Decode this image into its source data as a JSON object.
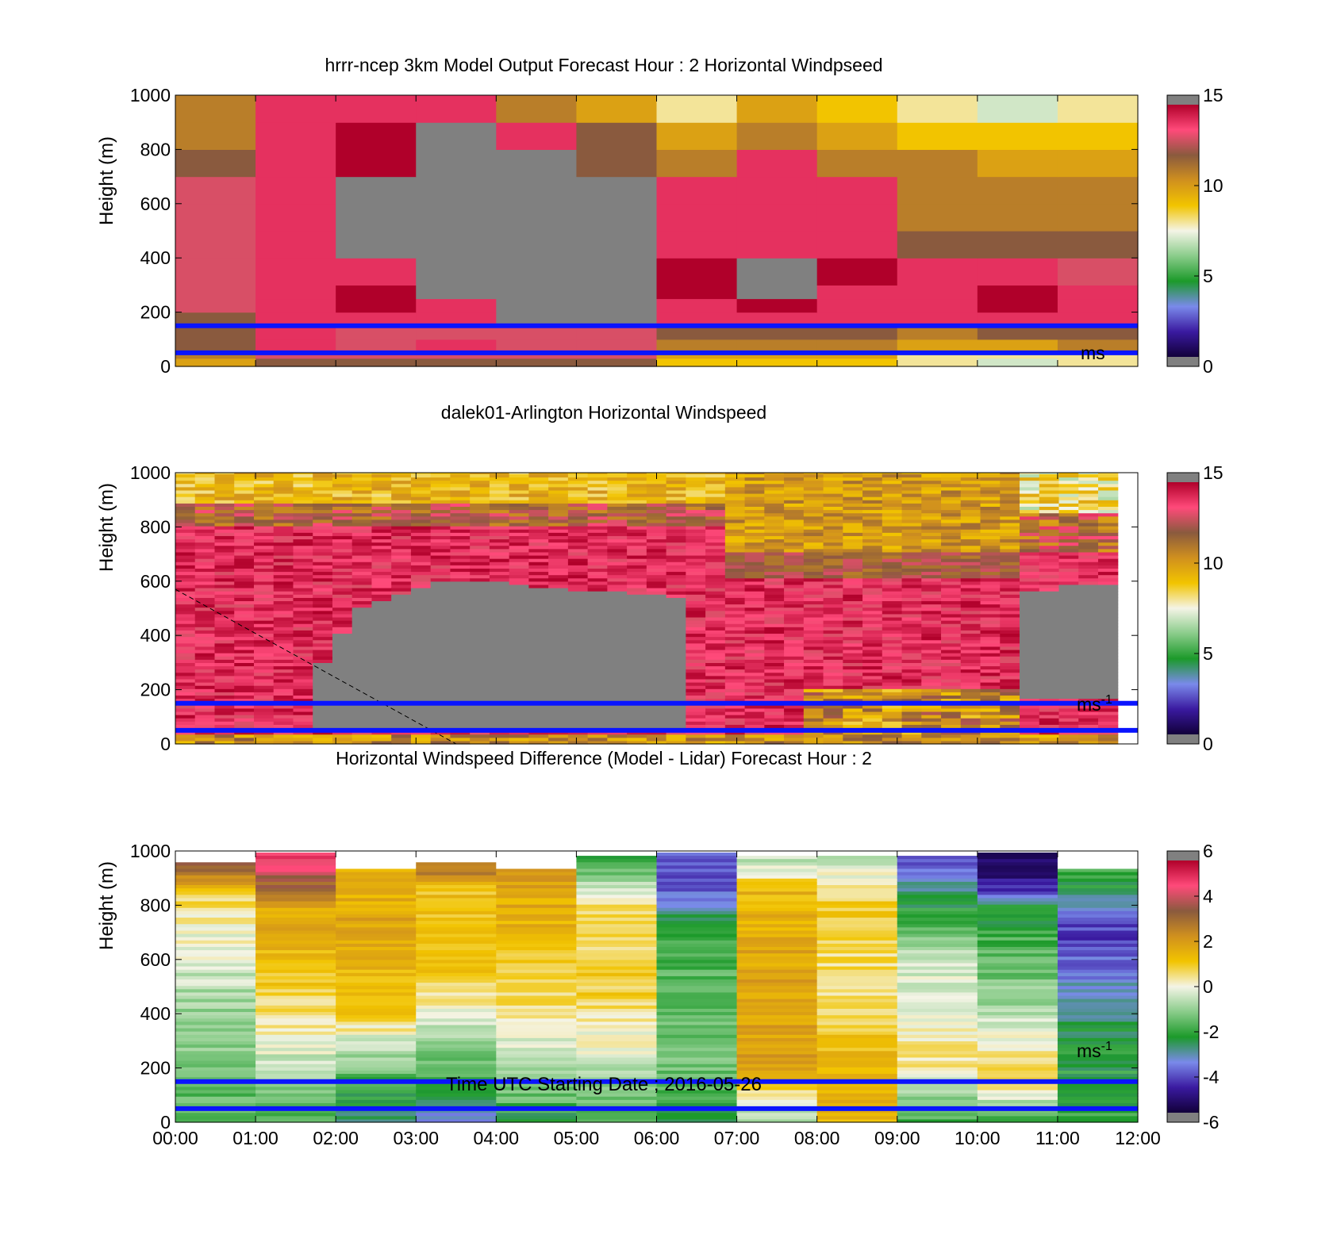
{
  "figure": {
    "xlabel": "Time UTC  Starting Date ; 2016-05-26",
    "x_ticks": [
      "00:00",
      "01:00",
      "02:00",
      "03:00",
      "04:00",
      "05:00",
      "06:00",
      "07:00",
      "08:00",
      "09:00",
      "10:00",
      "11:00",
      "12:00"
    ],
    "reference_lines_m": [
      150,
      50
    ],
    "reference_line_color": "#0a14ff",
    "missing_color": "#808080"
  },
  "chart_data": [
    {
      "type": "heatmap",
      "title": "hrrr-ncep 3km Model Output   Forecast Hour : 2 Horizontal Windpseed",
      "ylabel": "Height (m)",
      "ylim": [
        0,
        1000
      ],
      "y_ticks": [
        "0",
        "200",
        "400",
        "600",
        "800",
        "1000"
      ],
      "colorbar": {
        "range": [
          0,
          15
        ],
        "ticks": [
          "0",
          "5",
          "10",
          "15"
        ],
        "unit": "ms",
        "unit_exp": ""
      },
      "colormap": "speed",
      "x_hours": [
        0,
        1,
        2,
        3,
        4,
        5,
        6,
        7,
        8,
        9,
        10,
        11
      ],
      "y_bounds": [
        0,
        30,
        60,
        100,
        150,
        200,
        250,
        300,
        400,
        500,
        600,
        700,
        800,
        900,
        1000
      ],
      "values": [
        [
          10,
          12,
          12,
          12,
          12,
          12,
          9,
          9,
          9,
          8,
          7,
          8
        ],
        [
          11,
          13,
          13,
          13,
          13,
          13,
          10,
          10,
          10,
          8,
          8,
          8
        ],
        [
          12,
          14,
          13,
          14,
          13,
          13,
          11,
          11,
          11,
          10,
          10,
          11
        ],
        [
          12,
          14,
          13,
          13,
          13,
          13,
          12,
          12,
          12,
          11,
          12,
          12
        ],
        [
          12,
          14,
          14,
          14,
          null,
          null,
          14,
          14,
          14,
          14,
          14,
          14
        ],
        [
          13,
          14,
          15,
          14,
          null,
          null,
          14,
          15,
          14,
          14,
          15,
          14
        ],
        [
          13,
          14,
          15,
          null,
          null,
          null,
          15,
          null,
          14,
          14,
          15,
          14
        ],
        [
          13,
          14,
          14,
          null,
          null,
          null,
          15,
          null,
          15,
          14,
          14,
          13
        ],
        [
          13,
          14,
          null,
          null,
          null,
          null,
          14,
          14,
          14,
          12,
          12,
          12
        ],
        [
          13,
          14,
          null,
          null,
          null,
          null,
          14,
          14,
          14,
          11,
          11,
          11
        ],
        [
          13,
          14,
          null,
          null,
          null,
          null,
          14,
          14,
          14,
          11,
          11,
          11
        ],
        [
          12,
          14,
          15,
          null,
          null,
          12,
          11,
          14,
          11,
          11,
          10,
          10
        ],
        [
          11,
          14,
          15,
          null,
          14,
          12,
          10,
          11,
          10,
          9,
          9,
          9
        ],
        [
          11,
          14,
          14,
          14,
          11,
          10,
          8,
          10,
          9,
          8,
          7,
          8
        ]
      ]
    },
    {
      "type": "heatmap",
      "title": "dalek01-Arlington  Horizontal Windspeed",
      "ylabel": "Height (m)",
      "ylim": [
        0,
        1000
      ],
      "y_ticks": [
        "0",
        "200",
        "400",
        "600",
        "800",
        "1000"
      ],
      "colorbar": {
        "range": [
          0,
          15
        ],
        "ticks": [
          "0",
          "5",
          "10",
          "15"
        ],
        "unit": "ms",
        "unit_exp": "-1"
      },
      "colormap": "speed",
      "x_extent_hours": [
        0,
        12
      ],
      "columns": 48,
      "data_end_hour": 11.75,
      "annotation": "dashed diagonal line from (00:00, 570 m) to (03:30, 0 m)"
    },
    {
      "type": "heatmap",
      "title": "Horizontal Windspeed Difference (Model - Lidar) Forecast Hour : 2",
      "ylabel": "Height (m)",
      "ylim": [
        0,
        1000
      ],
      "y_ticks": [
        "0",
        "200",
        "400",
        "600",
        "800",
        "1000"
      ],
      "colorbar": {
        "range": [
          -6,
          6
        ],
        "ticks": [
          "-6",
          "-4",
          "-2",
          "0",
          "2",
          "4",
          "6"
        ],
        "unit": "ms",
        "unit_exp": "-1"
      },
      "colormap": "diff",
      "x_hours": [
        0,
        1,
        2,
        3,
        4,
        5,
        6,
        7,
        8,
        9,
        10,
        11
      ],
      "column_profiles": [
        [
          [
            0,
            -2
          ],
          [
            150,
            -1.5
          ],
          [
            400,
            -1
          ],
          [
            800,
            0.5
          ],
          [
            860,
            1.5
          ],
          [
            930,
            3.5
          ]
        ],
        [
          [
            0,
            -2
          ],
          [
            150,
            -1
          ],
          [
            300,
            0
          ],
          [
            500,
            1
          ],
          [
            800,
            2
          ],
          [
            900,
            4
          ],
          [
            960,
            5
          ]
        ],
        [
          [
            0,
            -3
          ],
          [
            150,
            -2
          ],
          [
            400,
            1
          ],
          [
            700,
            2
          ],
          [
            900,
            1.5
          ]
        ],
        [
          [
            0,
            -3.5
          ],
          [
            150,
            -2
          ],
          [
            400,
            0
          ],
          [
            600,
            1.5
          ],
          [
            850,
            1.2
          ],
          [
            930,
            3
          ]
        ],
        [
          [
            0,
            -2.5
          ],
          [
            150,
            -1
          ],
          [
            400,
            0.5
          ],
          [
            700,
            1.5
          ],
          [
            900,
            2
          ]
        ],
        [
          [
            0,
            -2
          ],
          [
            200,
            -0.5
          ],
          [
            500,
            1
          ],
          [
            800,
            0.5
          ],
          [
            950,
            -2
          ]
        ],
        [
          [
            0,
            -2.5
          ],
          [
            200,
            -1.5
          ],
          [
            700,
            -2
          ],
          [
            800,
            -3.5
          ],
          [
            880,
            -4.5
          ],
          [
            960,
            -4
          ]
        ],
        [
          [
            0,
            -1
          ],
          [
            200,
            2
          ],
          [
            500,
            2
          ],
          [
            850,
            1.5
          ],
          [
            950,
            -0.5
          ]
        ],
        [
          [
            0,
            1.5
          ],
          [
            200,
            1.5
          ],
          [
            500,
            0.5
          ],
          [
            800,
            1
          ],
          [
            950,
            -0.5
          ]
        ],
        [
          [
            0,
            -2
          ],
          [
            200,
            0.5
          ],
          [
            400,
            0
          ],
          [
            600,
            -0.5
          ],
          [
            800,
            -2.5
          ],
          [
            950,
            -4
          ]
        ],
        [
          [
            0,
            -2
          ],
          [
            150,
            1
          ],
          [
            450,
            -1
          ],
          [
            800,
            -2.5
          ],
          [
            870,
            -5
          ],
          [
            960,
            -5.5
          ]
        ],
        [
          [
            0,
            -2
          ],
          [
            300,
            -2.5
          ],
          [
            600,
            -4
          ],
          [
            700,
            -4.5
          ],
          [
            900,
            -2
          ]
        ]
      ]
    }
  ]
}
